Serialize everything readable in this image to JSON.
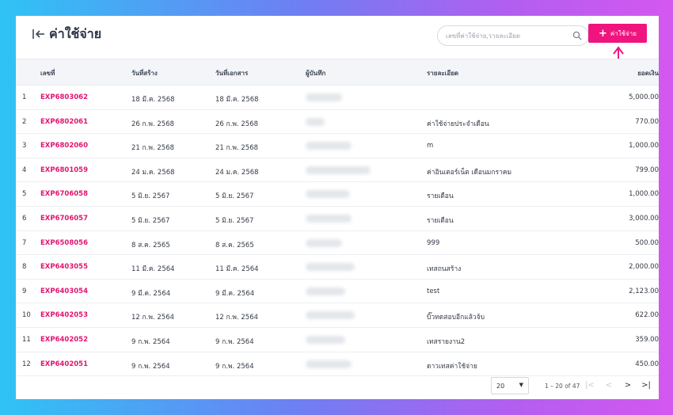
{
  "header": {
    "title": "ค่าใช้จ่าย",
    "search_placeholder": "เลขที่ค่าใช้จ่าย,รายละเอียด",
    "add_label": "ค่าใช้จ่าย"
  },
  "table": {
    "columns": [
      "เลขที่",
      "วันที่สร้าง",
      "วันที่เอกสาร",
      "ผู้บันทึก",
      "รายละเอียด",
      "ยอดเงิน"
    ],
    "rows": [
      {
        "num": "1",
        "id": "EXP6803062",
        "created": "18 มี.ค. 2568",
        "doc_date": "18 มี.ค. 2568",
        "detail": "",
        "amount": "5,000.00"
      },
      {
        "num": "2",
        "id": "EXP6802061",
        "created": "26 ก.พ. 2568",
        "doc_date": "26 ก.พ. 2568",
        "detail": "ค่าใช้จ่ายประจำเดือน",
        "amount": "770.00"
      },
      {
        "num": "3",
        "id": "EXP6802060",
        "created": "21 ก.พ. 2568",
        "doc_date": "21 ก.พ. 2568",
        "detail": "m",
        "amount": "1,000.00"
      },
      {
        "num": "4",
        "id": "EXP6801059",
        "created": "24 ม.ค. 2568",
        "doc_date": "24 ม.ค. 2568",
        "detail": "ค่าอินเตอร์เน็ต เดือนมกราคม",
        "amount": "799.00"
      },
      {
        "num": "5",
        "id": "EXP6706058",
        "created": "5 มิ.ย. 2567",
        "doc_date": "5 มิ.ย. 2567",
        "detail": "รายเดือน",
        "amount": "1,000.00"
      },
      {
        "num": "6",
        "id": "EXP6706057",
        "created": "5 มิ.ย. 2567",
        "doc_date": "5 มิ.ย. 2567",
        "detail": "รายเดือน",
        "amount": "3,000.00"
      },
      {
        "num": "7",
        "id": "EXP6508056",
        "created": "8 ส.ค. 2565",
        "doc_date": "8 ส.ค. 2565",
        "detail": "999",
        "amount": "500.00"
      },
      {
        "num": "8",
        "id": "EXP6403055",
        "created": "11 มี.ค. 2564",
        "doc_date": "11 มี.ค. 2564",
        "detail": "เทสถนสร้าง",
        "amount": "2,000.00"
      },
      {
        "num": "9",
        "id": "EXP6403054",
        "created": "9 มี.ค. 2564",
        "doc_date": "9 มี.ค. 2564",
        "detail": "test",
        "amount": "2,123.00"
      },
      {
        "num": "10",
        "id": "EXP6402053",
        "created": "12 ก.พ. 2564",
        "doc_date": "12 ก.พ. 2564",
        "detail": "บิ๊วทดสอบอีกแล้วจ้บ",
        "amount": "622.00"
      },
      {
        "num": "11",
        "id": "EXP6402052",
        "created": "9 ก.พ. 2564",
        "doc_date": "9 ก.พ. 2564",
        "detail": "เทสรายงาน2",
        "amount": "359.00"
      },
      {
        "num": "12",
        "id": "EXP6402051",
        "created": "9 ก.พ. 2564",
        "doc_date": "9 ก.พ. 2564",
        "detail": "ดาวเทสค่าใช้จ่าย",
        "amount": "450.00"
      }
    ]
  },
  "pagination": {
    "page_size": "20",
    "range_label": "1 – 20 of 47"
  },
  "colors": {
    "accent": "#f0147f",
    "id_text": "#e2156f"
  },
  "icons": {
    "back": "arrow-left-to-line-icon",
    "search": "magnifier-icon",
    "add": "plus-icon"
  }
}
